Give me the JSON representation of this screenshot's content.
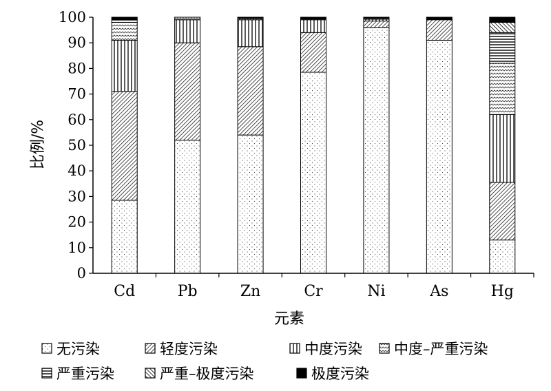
{
  "chart_data": {
    "type": "bar",
    "stacked": true,
    "categories": [
      "Cd",
      "Pb",
      "Zn",
      "Cr",
      "Ni",
      "As",
      "Hg"
    ],
    "xlabel": "元素",
    "ylabel": "比例/%",
    "ylim": [
      0,
      100
    ],
    "yticks": [
      "0",
      "10",
      "20",
      "30",
      "40",
      "50",
      "60",
      "70",
      "80",
      "90",
      "100"
    ],
    "grid": false,
    "legend_position": "bottom",
    "series": [
      {
        "name": "无污染",
        "pattern": "dots",
        "values": [
          28.5,
          52,
          54,
          78.5,
          96,
          91,
          13
        ]
      },
      {
        "name": "轻度污染",
        "pattern": "diagonal-fine",
        "values": [
          42.5,
          38,
          34.5,
          15.5,
          2.5,
          8,
          22.5
        ]
      },
      {
        "name": "中度污染",
        "pattern": "vertical",
        "values": [
          20,
          9,
          10.5,
          5,
          0.7,
          0,
          26.5
        ]
      },
      {
        "name": "中度–严重污染",
        "pattern": "wave",
        "values": [
          7,
          1,
          0.5,
          0.3,
          0.4,
          0,
          20
        ]
      },
      {
        "name": "严重污染",
        "pattern": "horizontal",
        "values": [
          1.2,
          0,
          0,
          0,
          0,
          0,
          12
        ]
      },
      {
        "name": "严重–极度污染",
        "pattern": "diagonal",
        "values": [
          0.3,
          0,
          0,
          0,
          0,
          0,
          4
        ]
      },
      {
        "name": "极度污染",
        "pattern": "solid",
        "values": [
          0.5,
          0,
          0.5,
          0.7,
          0.4,
          1,
          2
        ]
      }
    ]
  }
}
